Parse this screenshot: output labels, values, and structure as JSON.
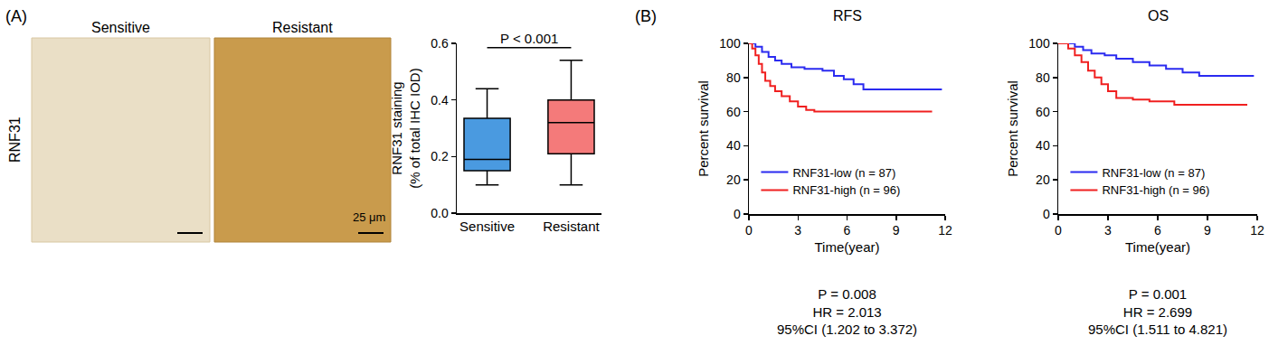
{
  "figure": {
    "panel_labels": [
      "(A)",
      "(B)"
    ],
    "row_label": "RNF31",
    "images": [
      "Sensitive",
      "Resistant"
    ],
    "scale_bar": "25 μm"
  },
  "chart_data": [
    {
      "type": "box",
      "categories": [
        "Sensitive",
        "Resistant"
      ],
      "y_label": [
        "RNF31 staining",
        "(% of total IHC IOD)"
      ],
      "ylim": [
        0,
        0.6
      ],
      "yticks": [
        {
          "value": 0,
          "label": "0.0"
        },
        0.2,
        0.4,
        0.6
      ],
      "grid": false,
      "colors": [
        "#4a9ae0",
        "#f47a7a"
      ],
      "min": [
        0.1,
        0.1
      ],
      "q1": [
        0.15,
        0.21
      ],
      "median": [
        0.19,
        0.32
      ],
      "q3": [
        0.335,
        0.4
      ],
      "max": [
        0.44,
        0.54
      ],
      "annotations": [
        {
          "text": "P < 0.001",
          "between": [
            "Sensitive",
            "Resistant"
          ],
          "y": 0.585
        }
      ]
    },
    {
      "type": "line",
      "title": "RFS",
      "x_label": "Time(year)",
      "y_label": "Percent survival",
      "xlim": [
        0,
        12
      ],
      "xticks": [
        0,
        3,
        6,
        9,
        12
      ],
      "ylim": [
        0,
        100
      ],
      "yticks": [
        0,
        20,
        40,
        60,
        80,
        100
      ],
      "grid": false,
      "line_style": "step",
      "legend": "lower left",
      "series": [
        {
          "name": "RNF31-low (n = 87)",
          "color": "#2b2bf0",
          "x": [
            0,
            0.4,
            0.8,
            1.2,
            1.6,
            2.0,
            2.6,
            3.4,
            4.5,
            5.2,
            5.8,
            6.4,
            7.0,
            11.8
          ],
          "values": [
            100,
            98,
            95,
            92,
            90,
            88,
            86,
            85,
            84,
            81,
            79,
            76,
            73,
            73
          ]
        },
        {
          "name": "RNF31-high (n = 96)",
          "color": "#f02020",
          "x": [
            0,
            0.2,
            0.4,
            0.6,
            0.8,
            1.0,
            1.3,
            1.6,
            2.0,
            2.5,
            3.0,
            3.5,
            4.0,
            11.2
          ],
          "values": [
            100,
            97,
            93,
            88,
            83,
            78,
            75,
            72,
            69,
            66,
            63,
            61,
            60,
            60
          ]
        }
      ],
      "annotations": [
        "P = 0.008",
        "HR = 2.013",
        "95%CI (1.202 to 3.372)"
      ]
    },
    {
      "type": "line",
      "title": "OS",
      "x_label": "Time(year)",
      "y_label": "Percent survival",
      "xlim": [
        0,
        12
      ],
      "xticks": [
        0,
        3,
        6,
        9,
        12
      ],
      "ylim": [
        0,
        100
      ],
      "yticks": [
        0,
        20,
        40,
        60,
        80,
        100
      ],
      "grid": false,
      "line_style": "step",
      "legend": "lower left",
      "series": [
        {
          "name": "RNF31-low (n = 87)",
          "color": "#2b2bf0",
          "x": [
            0,
            1.0,
            1.5,
            2.0,
            2.8,
            3.5,
            4.5,
            5.5,
            6.5,
            7.5,
            8.5,
            11.8
          ],
          "values": [
            100,
            98,
            96,
            94,
            93,
            91,
            89,
            87,
            85,
            83,
            81,
            81
          ]
        },
        {
          "name": "RNF31-high (n = 96)",
          "color": "#f02020",
          "x": [
            0,
            0.6,
            1.0,
            1.4,
            1.8,
            2.2,
            2.6,
            3.0,
            3.5,
            4.5,
            5.5,
            7.0,
            11.4
          ],
          "values": [
            100,
            97,
            93,
            89,
            84,
            80,
            76,
            72,
            68,
            67,
            66,
            64,
            64
          ]
        }
      ],
      "annotations": [
        "P = 0.001",
        "HR = 2.699",
        "95%CI (1.511 to 4.821)"
      ]
    }
  ]
}
